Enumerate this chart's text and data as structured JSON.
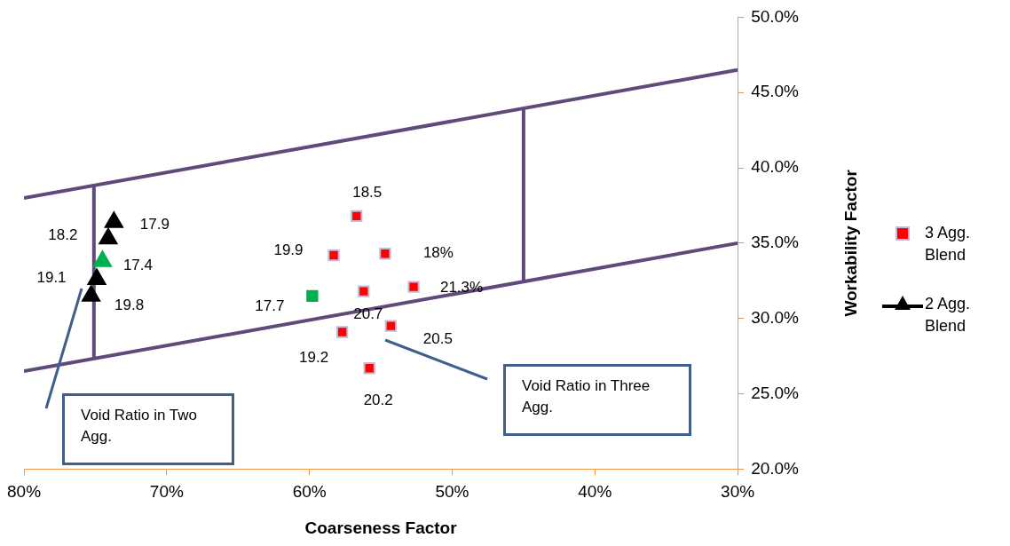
{
  "chart_data": {
    "type": "scatter",
    "xlabel": "Coarseness Factor",
    "ylabel": "Workability Factor",
    "xlim": [
      80,
      30
    ],
    "xticks": [
      {
        "value": 80,
        "label": "80%"
      },
      {
        "value": 70,
        "label": "70%"
      },
      {
        "value": 60,
        "label": "60%"
      },
      {
        "value": 50,
        "label": "50%"
      },
      {
        "value": 40,
        "label": "40%"
      },
      {
        "value": 30,
        "label": "30%"
      }
    ],
    "ylim": [
      20,
      50
    ],
    "yticks": [
      {
        "value": 20,
        "label": "20.0%"
      },
      {
        "value": 25,
        "label": "25.0%"
      },
      {
        "value": 30,
        "label": "30.0%"
      },
      {
        "value": 35,
        "label": "35.0%"
      },
      {
        "value": 40,
        "label": "40.0%"
      },
      {
        "value": 45,
        "label": "45.0%"
      },
      {
        "value": 50,
        "label": "50.0%"
      }
    ],
    "grid": false,
    "legend": "right",
    "series": [
      {
        "name": "3 Agg. Blend",
        "marker": "square",
        "color": "#ff0000",
        "colors": [
          "#ff0000",
          "#ff0000",
          "#ff0000",
          "#ff0000",
          "#ff0000",
          "#ff0000",
          "#ff0000",
          "#ff0000",
          "#00b050"
        ],
        "x": [
          56.7,
          58.3,
          54.7,
          52.7,
          56.2,
          54.3,
          57.7,
          55.8,
          59.8
        ],
        "values": [
          36.8,
          34.2,
          34.3,
          32.1,
          31.8,
          29.5,
          29.1,
          26.7,
          31.5
        ]
      },
      {
        "name": "2 Agg. Blend",
        "marker": "triangle",
        "color": "#000000",
        "colors": [
          "#000000",
          "#000000",
          "#00b050",
          "#000000",
          "#000000"
        ],
        "x": [
          73.7,
          74.1,
          74.5,
          74.9,
          75.3
        ],
        "values": [
          36.4,
          35.3,
          33.8,
          32.6,
          31.5
        ]
      },
      {
        "type": "line",
        "marker": "none",
        "color": "#604a7b",
        "x": [
          80,
          30
        ],
        "values": [
          38,
          46.5
        ]
      },
      {
        "type": "line",
        "marker": "none",
        "color": "#604a7b",
        "x": [
          80,
          30
        ],
        "values": [
          26.5,
          35
        ]
      },
      {
        "type": "line",
        "marker": "none",
        "color": "#604a7b",
        "x": [
          75.1,
          75.1
        ],
        "values": [
          27.4,
          38.8
        ]
      },
      {
        "type": "line",
        "marker": "none",
        "color": "#604a7b",
        "x": [
          45,
          45
        ],
        "values": [
          32.5,
          44
        ]
      }
    ],
    "annotations": [
      {
        "text": "18.5",
        "x": 56.7,
        "y": 36.8
      },
      {
        "text": "19.9",
        "x": 58.3,
        "y": 34.2
      },
      {
        "text": "18%",
        "x": 54.7,
        "y": 34.3
      },
      {
        "text": "21.3%",
        "x": 52.7,
        "y": 32.1
      },
      {
        "text": "20.7",
        "x": 56.2,
        "y": 31.8
      },
      {
        "text": "20.5",
        "x": 54.3,
        "y": 29.5
      },
      {
        "text": "19.2",
        "x": 57.7,
        "y": 29.1
      },
      {
        "text": "20.2",
        "x": 55.8,
        "y": 26.7
      },
      {
        "text": "17.7",
        "x": 59.8,
        "y": 31.5
      },
      {
        "text": "17.9",
        "x": 73.7,
        "y": 36.4
      },
      {
        "text": "18.2",
        "x": 74.1,
        "y": 35.3
      },
      {
        "text": "17.4",
        "x": 74.5,
        "y": 33.8
      },
      {
        "text": "19.1",
        "x": 74.9,
        "y": 32.6
      },
      {
        "text": "19.8",
        "x": 75.3,
        "y": 31.5
      },
      "Void Ratio in Two Agg.",
      "Void Ratio in Three  Agg."
    ]
  }
}
